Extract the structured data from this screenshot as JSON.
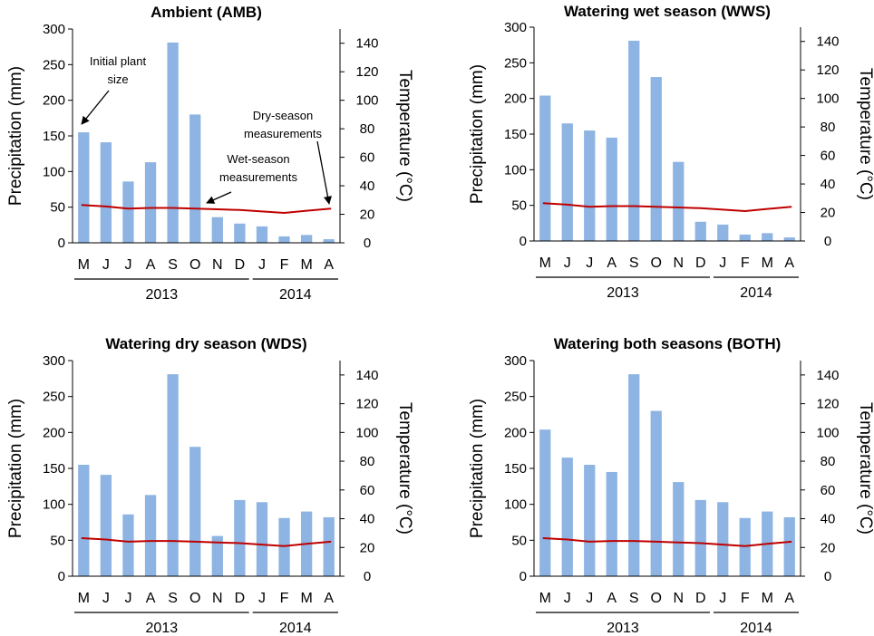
{
  "chart_data": [
    {
      "type": "bar",
      "title": "Ambient (AMB)",
      "categories": [
        "M",
        "J",
        "J",
        "A",
        "S",
        "O",
        "N",
        "D",
        "J",
        "F",
        "M",
        "A"
      ],
      "years": [
        {
          "label": "2013",
          "from": 0,
          "to": 7
        },
        {
          "label": "2014",
          "from": 8,
          "to": 11
        }
      ],
      "series": [
        {
          "name": "Precipitation",
          "axis": "left",
          "kind": "bar",
          "color": "#8DB4E2",
          "values": [
            155,
            141,
            86,
            113,
            281,
            180,
            36,
            27,
            23,
            9,
            11,
            5
          ]
        },
        {
          "name": "Temperature",
          "axis": "right",
          "kind": "line",
          "color": "#C00000",
          "values": [
            26.5,
            25.5,
            24,
            24.5,
            24.5,
            24,
            23.5,
            23,
            22,
            21,
            22.5,
            24
          ]
        }
      ],
      "ylabel": "Precipitation (mm)",
      "ylim": [
        0,
        300
      ],
      "yticks": [
        0,
        50,
        100,
        150,
        200,
        250,
        300
      ],
      "y2label": "Temperature (°C)",
      "y2lim": [
        0,
        150
      ],
      "y2ticks": [
        0,
        20,
        40,
        60,
        80,
        100,
        120,
        140
      ],
      "annotations": [
        {
          "lines": [
            "Initial plant",
            "size"
          ],
          "target": "M"
        },
        {
          "lines": [
            "Wet-season",
            "measurements"
          ],
          "target": "N"
        },
        {
          "lines": [
            "Dry-season",
            "measurements"
          ],
          "target": "A"
        }
      ]
    },
    {
      "type": "bar",
      "title": "Watering wet season (WWS)",
      "categories": [
        "M",
        "J",
        "J",
        "A",
        "S",
        "O",
        "N",
        "D",
        "J",
        "F",
        "M",
        "A"
      ],
      "years": [
        {
          "label": "2013",
          "from": 0,
          "to": 7
        },
        {
          "label": "2014",
          "from": 8,
          "to": 11
        }
      ],
      "series": [
        {
          "name": "Precipitation",
          "axis": "left",
          "kind": "bar",
          "color": "#8DB4E2",
          "values": [
            204,
            165,
            155,
            145,
            281,
            230,
            111,
            27,
            23,
            9,
            11,
            5
          ]
        },
        {
          "name": "Temperature",
          "axis": "right",
          "kind": "line",
          "color": "#C00000",
          "values": [
            26.5,
            25.5,
            24,
            24.5,
            24.5,
            24,
            23.5,
            23,
            22,
            21,
            22.5,
            24
          ]
        }
      ],
      "ylabel": "Precipitation (mm)",
      "ylim": [
        0,
        300
      ],
      "yticks": [
        0,
        50,
        100,
        150,
        200,
        250,
        300
      ],
      "y2label": "Temperature (°C)",
      "y2lim": [
        0,
        150
      ],
      "y2ticks": [
        0,
        20,
        40,
        60,
        80,
        100,
        120,
        140
      ],
      "annotations": []
    },
    {
      "type": "bar",
      "title": "Watering dry season (WDS)",
      "categories": [
        "M",
        "J",
        "J",
        "A",
        "S",
        "O",
        "N",
        "D",
        "J",
        "F",
        "M",
        "A"
      ],
      "years": [
        {
          "label": "2013",
          "from": 0,
          "to": 7
        },
        {
          "label": "2014",
          "from": 8,
          "to": 11
        }
      ],
      "series": [
        {
          "name": "Precipitation",
          "axis": "left",
          "kind": "bar",
          "color": "#8DB4E2",
          "values": [
            155,
            141,
            86,
            113,
            281,
            180,
            56,
            106,
            103,
            81,
            90,
            82
          ]
        },
        {
          "name": "Temperature",
          "axis": "right",
          "kind": "line",
          "color": "#C00000",
          "values": [
            26.5,
            25.5,
            24,
            24.5,
            24.5,
            24,
            23.5,
            23,
            22,
            21,
            22.5,
            24
          ]
        }
      ],
      "ylabel": "Precipitation (mm)",
      "ylim": [
        0,
        300
      ],
      "yticks": [
        0,
        50,
        100,
        150,
        200,
        250,
        300
      ],
      "y2label": "Temperature (°C)",
      "y2lim": [
        0,
        150
      ],
      "y2ticks": [
        0,
        20,
        40,
        60,
        80,
        100,
        120,
        140
      ],
      "annotations": []
    },
    {
      "type": "bar",
      "title": "Watering both seasons (BOTH)",
      "categories": [
        "M",
        "J",
        "J",
        "A",
        "S",
        "O",
        "N",
        "D",
        "J",
        "F",
        "M",
        "A"
      ],
      "years": [
        {
          "label": "2013",
          "from": 0,
          "to": 7
        },
        {
          "label": "2014",
          "from": 8,
          "to": 11
        }
      ],
      "series": [
        {
          "name": "Precipitation",
          "axis": "left",
          "kind": "bar",
          "color": "#8DB4E2",
          "values": [
            204,
            165,
            155,
            145,
            281,
            230,
            131,
            106,
            103,
            81,
            90,
            82
          ]
        },
        {
          "name": "Temperature",
          "axis": "right",
          "kind": "line",
          "color": "#C00000",
          "values": [
            26.5,
            25.5,
            24,
            24.5,
            24.5,
            24,
            23.5,
            23,
            22,
            21,
            22.5,
            24
          ]
        }
      ],
      "ylabel": "Precipitation (mm)",
      "ylim": [
        0,
        300
      ],
      "yticks": [
        0,
        50,
        100,
        150,
        200,
        250,
        300
      ],
      "y2label": "Temperature (°C)",
      "y2lim": [
        0,
        150
      ],
      "y2ticks": [
        0,
        20,
        40,
        60,
        80,
        100,
        120,
        140
      ],
      "annotations": []
    }
  ]
}
